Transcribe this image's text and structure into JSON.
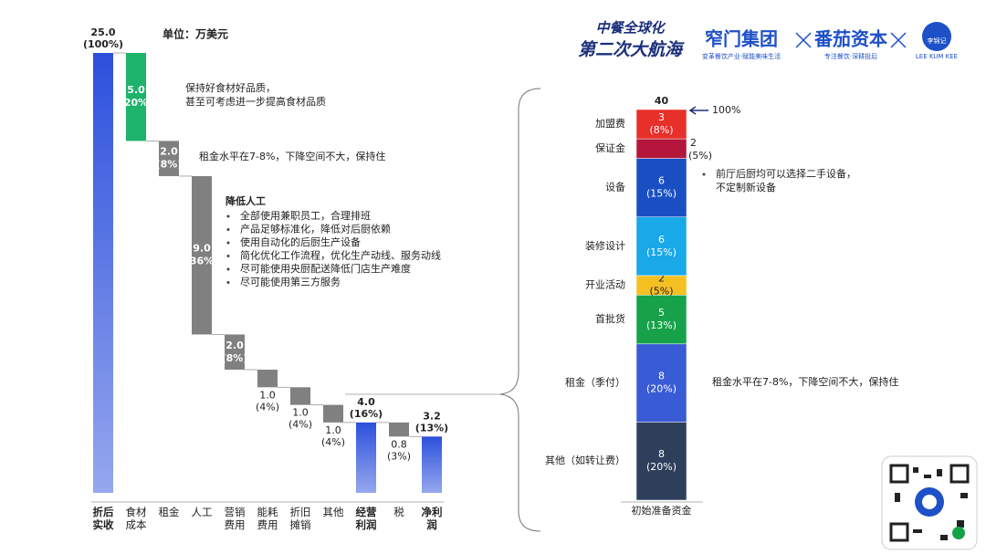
{
  "header": {
    "campaign": [
      "中餐全球化",
      "第二次大航海"
    ],
    "logo1": "窄门集团",
    "logo1_tagline": "变革餐饮产业·赋能美味生活",
    "logo2": "番茄资本",
    "logo2_tagline": "专注餐饮·深耕投后",
    "logo3": "李锦记",
    "logo3_en": "LEE KUM KEE"
  },
  "chart_data": [
    {
      "type": "waterfall",
      "unit": "单位：万美元",
      "categories": [
        "折后实收",
        "食材成本",
        "租金",
        "人工",
        "营销费用",
        "能耗费用",
        "折旧摊销",
        "其他",
        "经营利润",
        "税",
        "净利润"
      ],
      "measure": [
        "total",
        "decrease",
        "decrease",
        "decrease",
        "decrease",
        "decrease",
        "decrease",
        "decrease",
        "total",
        "decrease",
        "total"
      ],
      "values": [
        25.0,
        5.0,
        2.0,
        9.0,
        2.0,
        1.0,
        1.0,
        1.0,
        4.0,
        0.8,
        3.2
      ],
      "value_labels": [
        "25.0",
        "5.0",
        "2.0",
        "9.0",
        "2.0",
        "1.0",
        "1.0",
        "1.0",
        "4.0",
        "0.8",
        "3.2"
      ],
      "pct": [
        100,
        20,
        8,
        36,
        8,
        4,
        4,
        4,
        16,
        3,
        13
      ],
      "pct_labels": [
        "(100%)",
        "(20%)",
        "(8%)",
        "(36%)",
        "(8%)",
        "(4%)",
        "(4%)",
        "(4%)",
        "(16%)",
        "(3%)",
        "(13%)"
      ],
      "colors": [
        "#2c50dc",
        "#1db36b",
        "#808080",
        "#808080",
        "#808080",
        "#808080",
        "#808080",
        "#808080",
        "#2c50dc",
        "#808080",
        "#2c50dc"
      ],
      "annotations": [
        {
          "lines": [
            "保持好食材好品质，",
            "甚至可考虑进一步提高食材品质"
          ]
        },
        {
          "lines": [
            "租金水平在7-8%，下降空间不大，保持住"
          ]
        },
        {
          "title": "降低人工",
          "bullets": [
            "全部使用兼职员工，合理排班",
            "产品足够标准化，降低对后厨依赖",
            "使用自动化的后厨生产设备",
            "简化优化工作流程，优化生产动线、服务动线",
            "尽可能使用央厨配送降低门店生产难度",
            "尽可能使用第三方服务"
          ]
        }
      ]
    },
    {
      "type": "stacked-bar",
      "categories": [
        "初始准备资金"
      ],
      "total": 40,
      "total_pct": 100,
      "total_pct_label": "100%",
      "series": [
        {
          "name": "其他（如转让费）",
          "color": "#2e3f5c",
          "values": [
            8
          ],
          "pct": [
            20
          ],
          "pct_labels": [
            "(20%)"
          ]
        },
        {
          "name": "租金（季付）",
          "color": "#3a5bd6",
          "values": [
            8
          ],
          "pct": [
            20
          ],
          "pct_labels": [
            "(20%)"
          ]
        },
        {
          "name": "首批货",
          "color": "#17a24a",
          "values": [
            5
          ],
          "pct": [
            13
          ],
          "pct_labels": [
            "(13%)"
          ]
        },
        {
          "name": "开业活动",
          "color": "#f5c021",
          "values": [
            2
          ],
          "pct": [
            5
          ],
          "pct_labels": [
            "(5%)"
          ]
        },
        {
          "name": "装修设计",
          "color": "#19a8e8",
          "values": [
            6
          ],
          "pct": [
            15
          ],
          "pct_labels": [
            "(15%)"
          ]
        },
        {
          "name": "设备",
          "color": "#1a4fc4",
          "values": [
            6
          ],
          "pct": [
            15
          ],
          "pct_labels": [
            "(15%)"
          ]
        },
        {
          "name": "保证金",
          "color": "#b5163b",
          "values": [
            2
          ],
          "pct": [
            5
          ],
          "pct_labels": [
            "(5%)"
          ],
          "label_position": "outside"
        },
        {
          "name": "加盟费",
          "color": "#e8302a",
          "values": [
            3
          ],
          "pct": [
            8
          ],
          "pct_labels": [
            "(8%)"
          ]
        }
      ],
      "annotations": [
        {
          "lines": [
            "前厅后厨均可以选择二手设备，",
            "不定制新设备"
          ]
        },
        {
          "lines": [
            "租金水平在7-8%，下降空间不大，保持住"
          ]
        }
      ]
    }
  ]
}
